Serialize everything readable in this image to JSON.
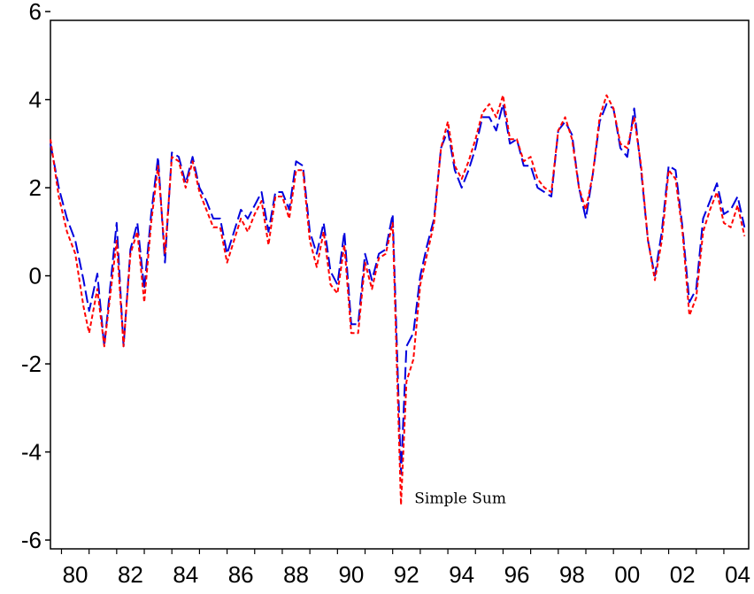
{
  "chart_data": {
    "type": "line",
    "title": "",
    "xlabel": "",
    "ylabel": "",
    "xlim": [
      1979.6,
      2004.9
    ],
    "ylim": [
      -6.2,
      5.8
    ],
    "y_ticks": [
      -6,
      -4,
      -2,
      0,
      2,
      4,
      6
    ],
    "x_ticks": [
      {
        "value": 1980.5,
        "label": "80"
      },
      {
        "value": 1982.5,
        "label": "82"
      },
      {
        "value": 1984.5,
        "label": "84"
      },
      {
        "value": 1986.5,
        "label": "86"
      },
      {
        "value": 1988.5,
        "label": "88"
      },
      {
        "value": 1990.5,
        "label": "90"
      },
      {
        "value": 1992.5,
        "label": "92"
      },
      {
        "value": 1994.5,
        "label": "94"
      },
      {
        "value": 1996.5,
        "label": "96"
      },
      {
        "value": 1998.5,
        "label": "98"
      },
      {
        "value": 2000.5,
        "label": "00"
      },
      {
        "value": 2002.5,
        "label": "02"
      },
      {
        "value": 2004.5,
        "label": "04"
      }
    ],
    "grid": false,
    "legend": "none",
    "annotations": [
      {
        "text": "Simple Sum",
        "x": 1992.5,
        "y": -5.1
      }
    ],
    "series": [
      {
        "color": "#0000dd",
        "dash": "long",
        "points": [
          [
            1979.6,
            3.0
          ],
          [
            1979.9,
            2.0
          ],
          [
            1980.2,
            1.3
          ],
          [
            1980.5,
            0.8
          ],
          [
            1980.8,
            -0.1
          ],
          [
            1981.0,
            -0.8
          ],
          [
            1981.3,
            0.05
          ],
          [
            1981.55,
            -1.6
          ],
          [
            1982.0,
            1.2
          ],
          [
            1982.25,
            -1.6
          ],
          [
            1982.5,
            0.6
          ],
          [
            1982.75,
            1.2
          ],
          [
            1983.0,
            -0.3
          ],
          [
            1983.25,
            1.4
          ],
          [
            1983.5,
            2.7
          ],
          [
            1983.75,
            0.3
          ],
          [
            1984.0,
            2.8
          ],
          [
            1984.25,
            2.7
          ],
          [
            1984.5,
            2.1
          ],
          [
            1984.75,
            2.7
          ],
          [
            1985.0,
            2.0
          ],
          [
            1985.25,
            1.7
          ],
          [
            1985.5,
            1.3
          ],
          [
            1985.75,
            1.3
          ],
          [
            1986.0,
            0.5
          ],
          [
            1986.25,
            1.0
          ],
          [
            1986.5,
            1.5
          ],
          [
            1986.75,
            1.3
          ],
          [
            1987.0,
            1.6
          ],
          [
            1987.25,
            1.9
          ],
          [
            1987.5,
            1.0
          ],
          [
            1987.75,
            1.9
          ],
          [
            1988.0,
            1.9
          ],
          [
            1988.25,
            1.5
          ],
          [
            1988.5,
            2.6
          ],
          [
            1988.75,
            2.5
          ],
          [
            1989.0,
            1.0
          ],
          [
            1989.25,
            0.5
          ],
          [
            1989.5,
            1.2
          ],
          [
            1989.75,
            0.1
          ],
          [
            1990.0,
            -0.2
          ],
          [
            1990.25,
            1.0
          ],
          [
            1990.5,
            -1.1
          ],
          [
            1990.75,
            -1.1
          ],
          [
            1991.0,
            0.5
          ],
          [
            1991.25,
            -0.1
          ],
          [
            1991.5,
            0.5
          ],
          [
            1991.75,
            0.6
          ],
          [
            1992.0,
            1.4
          ],
          [
            1992.3,
            -4.5
          ],
          [
            1992.5,
            -1.6
          ],
          [
            1992.75,
            -1.3
          ],
          [
            1993.0,
            0.0
          ],
          [
            1993.25,
            0.7
          ],
          [
            1993.5,
            1.3
          ],
          [
            1993.75,
            2.9
          ],
          [
            1994.0,
            3.3
          ],
          [
            1994.25,
            2.4
          ],
          [
            1994.5,
            2.0
          ],
          [
            1994.75,
            2.4
          ],
          [
            1995.0,
            2.9
          ],
          [
            1995.25,
            3.6
          ],
          [
            1995.5,
            3.6
          ],
          [
            1995.75,
            3.3
          ],
          [
            1996.0,
            3.9
          ],
          [
            1996.25,
            3.0
          ],
          [
            1996.5,
            3.1
          ],
          [
            1996.75,
            2.5
          ],
          [
            1997.0,
            2.5
          ],
          [
            1997.25,
            2.0
          ],
          [
            1997.5,
            1.9
          ],
          [
            1997.75,
            1.8
          ],
          [
            1998.0,
            3.3
          ],
          [
            1998.25,
            3.5
          ],
          [
            1998.5,
            3.2
          ],
          [
            1998.75,
            2.0
          ],
          [
            1999.0,
            1.3
          ],
          [
            1999.25,
            2.3
          ],
          [
            1999.5,
            3.5
          ],
          [
            1999.75,
            3.9
          ],
          [
            2000.0,
            3.8
          ],
          [
            2000.25,
            2.9
          ],
          [
            2000.5,
            2.7
          ],
          [
            2000.75,
            3.8
          ],
          [
            2001.0,
            2.4
          ],
          [
            2001.25,
            0.8
          ],
          [
            2001.5,
            0.0
          ],
          [
            2001.75,
            1.0
          ],
          [
            2002.0,
            2.5
          ],
          [
            2002.25,
            2.4
          ],
          [
            2002.5,
            1.1
          ],
          [
            2002.75,
            -0.6
          ],
          [
            2003.0,
            -0.3
          ],
          [
            2003.25,
            1.3
          ],
          [
            2003.5,
            1.7
          ],
          [
            2003.75,
            2.1
          ],
          [
            2004.0,
            1.4
          ],
          [
            2004.25,
            1.5
          ],
          [
            2004.5,
            1.8
          ],
          [
            2004.75,
            1.1
          ]
        ]
      },
      {
        "color": "#ff0000",
        "dash": "short",
        "points": [
          [
            1979.6,
            3.1
          ],
          [
            1979.9,
            1.8
          ],
          [
            1980.2,
            1.0
          ],
          [
            1980.5,
            0.5
          ],
          [
            1980.8,
            -0.7
          ],
          [
            1981.0,
            -1.3
          ],
          [
            1981.3,
            -0.3
          ],
          [
            1981.55,
            -1.6
          ],
          [
            1982.0,
            0.8
          ],
          [
            1982.25,
            -1.6
          ],
          [
            1982.5,
            0.5
          ],
          [
            1982.75,
            1.0
          ],
          [
            1983.0,
            -0.6
          ],
          [
            1983.25,
            1.2
          ],
          [
            1983.5,
            2.5
          ],
          [
            1983.75,
            0.5
          ],
          [
            1984.0,
            2.7
          ],
          [
            1984.25,
            2.6
          ],
          [
            1984.5,
            2.0
          ],
          [
            1984.75,
            2.6
          ],
          [
            1985.0,
            1.9
          ],
          [
            1985.25,
            1.5
          ],
          [
            1985.5,
            1.1
          ],
          [
            1985.75,
            1.1
          ],
          [
            1986.0,
            0.3
          ],
          [
            1986.25,
            0.8
          ],
          [
            1986.5,
            1.3
          ],
          [
            1986.75,
            1.0
          ],
          [
            1987.0,
            1.4
          ],
          [
            1987.25,
            1.7
          ],
          [
            1987.5,
            0.7
          ],
          [
            1987.75,
            1.8
          ],
          [
            1988.0,
            1.8
          ],
          [
            1988.25,
            1.3
          ],
          [
            1988.5,
            2.4
          ],
          [
            1988.75,
            2.4
          ],
          [
            1989.0,
            0.8
          ],
          [
            1989.25,
            0.2
          ],
          [
            1989.5,
            1.0
          ],
          [
            1989.75,
            -0.2
          ],
          [
            1990.0,
            -0.4
          ],
          [
            1990.25,
            0.7
          ],
          [
            1990.5,
            -1.3
          ],
          [
            1990.75,
            -1.3
          ],
          [
            1991.0,
            0.3
          ],
          [
            1991.25,
            -0.3
          ],
          [
            1991.5,
            0.4
          ],
          [
            1991.75,
            0.5
          ],
          [
            1992.0,
            1.2
          ],
          [
            1992.3,
            -5.2
          ],
          [
            1992.5,
            -2.4
          ],
          [
            1992.75,
            -1.9
          ],
          [
            1993.0,
            -0.2
          ],
          [
            1993.25,
            0.5
          ],
          [
            1993.5,
            1.2
          ],
          [
            1993.75,
            2.9
          ],
          [
            1994.0,
            3.5
          ],
          [
            1994.25,
            2.5
          ],
          [
            1994.5,
            2.2
          ],
          [
            1994.75,
            2.6
          ],
          [
            1995.0,
            3.1
          ],
          [
            1995.25,
            3.7
          ],
          [
            1995.5,
            3.9
          ],
          [
            1995.75,
            3.6
          ],
          [
            1996.0,
            4.1
          ],
          [
            1996.25,
            3.1
          ],
          [
            1996.5,
            3.1
          ],
          [
            1996.75,
            2.6
          ],
          [
            1997.0,
            2.7
          ],
          [
            1997.25,
            2.2
          ],
          [
            1997.5,
            2.0
          ],
          [
            1997.75,
            1.9
          ],
          [
            1998.0,
            3.3
          ],
          [
            1998.25,
            3.6
          ],
          [
            1998.5,
            3.1
          ],
          [
            1998.75,
            2.0
          ],
          [
            1999.0,
            1.5
          ],
          [
            1999.25,
            2.3
          ],
          [
            1999.5,
            3.6
          ],
          [
            1999.75,
            4.1
          ],
          [
            2000.0,
            3.8
          ],
          [
            2000.25,
            3.0
          ],
          [
            2000.5,
            2.9
          ],
          [
            2000.75,
            3.6
          ],
          [
            2001.0,
            2.5
          ],
          [
            2001.25,
            0.8
          ],
          [
            2001.5,
            -0.1
          ],
          [
            2001.75,
            0.8
          ],
          [
            2002.0,
            2.4
          ],
          [
            2002.25,
            2.2
          ],
          [
            2002.5,
            1.0
          ],
          [
            2002.75,
            -0.9
          ],
          [
            2003.0,
            -0.5
          ],
          [
            2003.25,
            1.0
          ],
          [
            2003.5,
            1.5
          ],
          [
            2003.75,
            1.9
          ],
          [
            2004.0,
            1.2
          ],
          [
            2004.25,
            1.1
          ],
          [
            2004.5,
            1.6
          ],
          [
            2004.75,
            0.9
          ]
        ]
      }
    ]
  }
}
